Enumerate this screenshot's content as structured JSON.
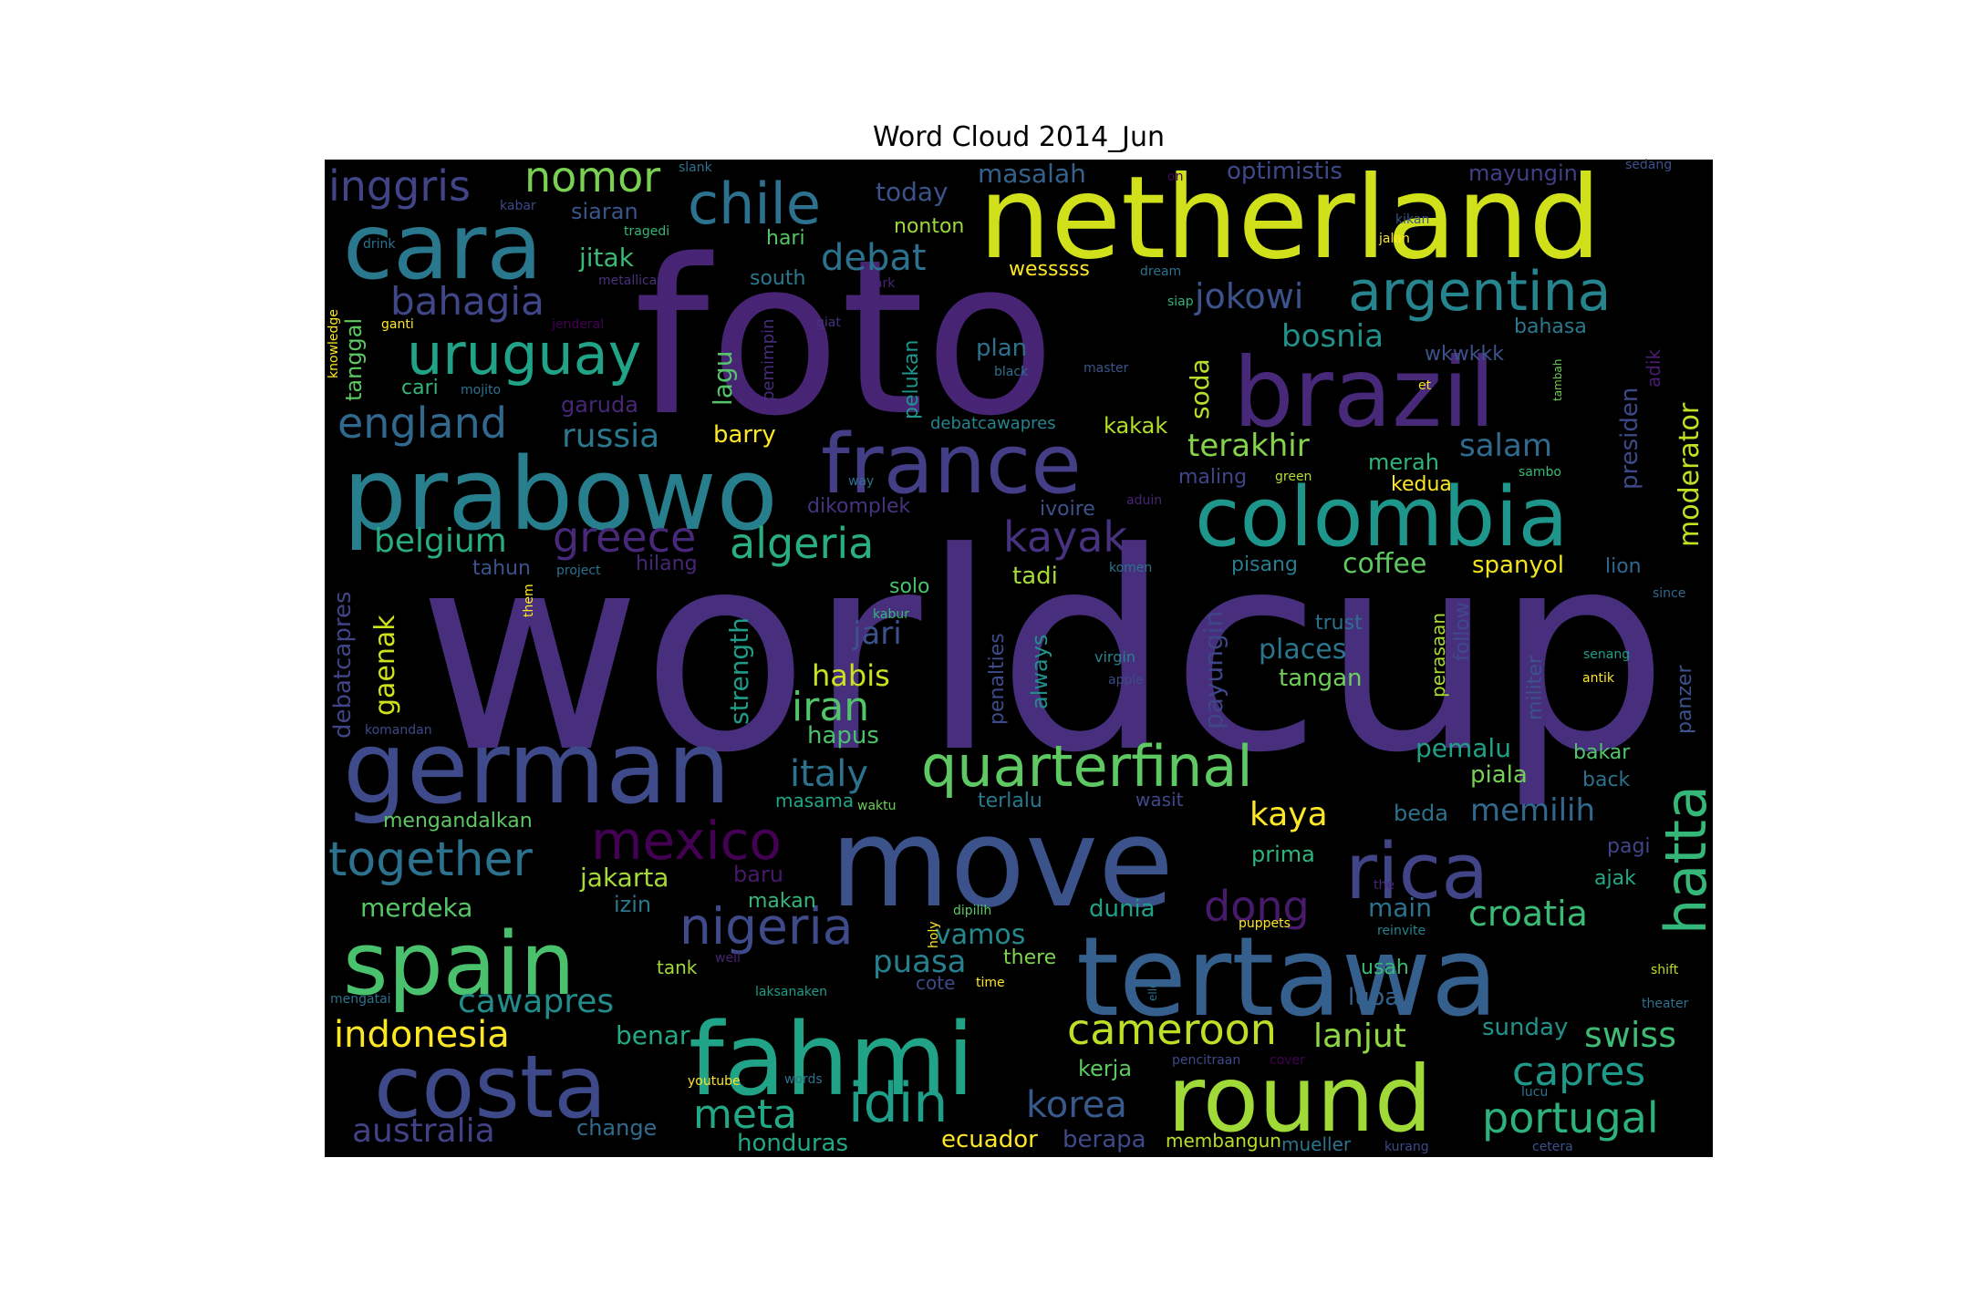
{
  "chart_data": {
    "type": "wordcloud",
    "title": "Word Cloud 2014_Jun",
    "background": "#000000",
    "colormap": "viridis",
    "words": [
      {
        "text": "worldcup",
        "size": 300,
        "color": "#472f7d"
      },
      {
        "text": "foto",
        "size": 235,
        "color": "#482475"
      },
      {
        "text": "netherland",
        "size": 125,
        "color": "#d0e11c"
      },
      {
        "text": "brazil",
        "size": 105,
        "color": "#482878"
      },
      {
        "text": "move",
        "size": 135,
        "color": "#3b528b"
      },
      {
        "text": "tertawa",
        "size": 120,
        "color": "#355f8d"
      },
      {
        "text": "prabowo",
        "size": 110,
        "color": "#277f8e"
      },
      {
        "text": "german",
        "size": 110,
        "color": "#3e4a89"
      },
      {
        "text": "fahmi",
        "size": 110,
        "color": "#20a386"
      },
      {
        "text": "cara",
        "size": 100,
        "color": "#2a788e"
      },
      {
        "text": "round",
        "size": 100,
        "color": "#a0da39"
      },
      {
        "text": "colombia",
        "size": 90,
        "color": "#1f968b"
      },
      {
        "text": "costa",
        "size": 95,
        "color": "#3e4989"
      },
      {
        "text": "spain",
        "size": 95,
        "color": "#4ac16d"
      },
      {
        "text": "france",
        "size": 90,
        "color": "#433e85"
      },
      {
        "text": "rica",
        "size": 85,
        "color": "#414487"
      },
      {
        "text": "quarterfinal",
        "size": 62,
        "color": "#5ec962"
      },
      {
        "text": "argentina",
        "size": 60,
        "color": "#25848e"
      },
      {
        "text": "uruguay",
        "size": 62,
        "color": "#20a386"
      },
      {
        "text": "chile",
        "size": 62,
        "color": "#2c728e"
      },
      {
        "text": "hatta",
        "size": 62,
        "color": "#35b779"
      },
      {
        "text": "mexico",
        "size": 58,
        "color": "#440154"
      },
      {
        "text": "nigeria",
        "size": 55,
        "color": "#3e4a89"
      },
      {
        "text": "together",
        "size": 52,
        "color": "#2c728e"
      },
      {
        "text": "idin",
        "size": 60,
        "color": "#1f9e89"
      },
      {
        "text": "nomor",
        "size": 46,
        "color": "#7ad151"
      },
      {
        "text": "inggris",
        "size": 46,
        "color": "#414487"
      },
      {
        "text": "england",
        "size": 46,
        "color": "#31688e"
      },
      {
        "text": "greece",
        "size": 46,
        "color": "#482878"
      },
      {
        "text": "kayak",
        "size": 46,
        "color": "#46327e"
      },
      {
        "text": "dong",
        "size": 46,
        "color": "#481a6c"
      },
      {
        "text": "algeria",
        "size": 46,
        "color": "#29af7f"
      },
      {
        "text": "bahagia",
        "size": 42,
        "color": "#404688"
      },
      {
        "text": "cameroon",
        "size": 46,
        "color": "#bddf26"
      },
      {
        "text": "meta",
        "size": 44,
        "color": "#22a884"
      },
      {
        "text": "capres",
        "size": 44,
        "color": "#1f9a8a"
      },
      {
        "text": "portugal",
        "size": 46,
        "color": "#2db27d"
      },
      {
        "text": "croatia",
        "size": 38,
        "color": "#3bbb75"
      },
      {
        "text": "swiss",
        "size": 38,
        "color": "#3dbc74"
      },
      {
        "text": "debat",
        "size": 40,
        "color": "#2c728e"
      },
      {
        "text": "jokowi",
        "size": 38,
        "color": "#3b528b"
      },
      {
        "text": "bosnia",
        "size": 34,
        "color": "#21918c"
      },
      {
        "text": "russia",
        "size": 36,
        "color": "#2a778e"
      },
      {
        "text": "belgium",
        "size": 36,
        "color": "#27ad81"
      },
      {
        "text": "italy",
        "size": 40,
        "color": "#2c728e"
      },
      {
        "text": "iran",
        "size": 44,
        "color": "#52c569"
      },
      {
        "text": "kaya",
        "size": 36,
        "color": "#fde725"
      },
      {
        "text": "korea",
        "size": 40,
        "color": "#38598c"
      },
      {
        "text": "lanjut",
        "size": 36,
        "color": "#8fd744"
      },
      {
        "text": "indonesia",
        "size": 40,
        "color": "#fde725"
      },
      {
        "text": "cawapres",
        "size": 36,
        "color": "#228c8d"
      },
      {
        "text": "australia",
        "size": 36,
        "color": "#424186"
      },
      {
        "text": "terakhir",
        "size": 34,
        "color": "#84d44b"
      },
      {
        "text": "salam",
        "size": 34,
        "color": "#306a8e"
      },
      {
        "text": "memilih",
        "size": 34,
        "color": "#31688e"
      },
      {
        "text": "jari",
        "size": 34,
        "color": "#3b528b"
      },
      {
        "text": "habis",
        "size": 32,
        "color": "#cae11f"
      },
      {
        "text": "puasa",
        "size": 34,
        "color": "#27808e"
      },
      {
        "text": "coffee",
        "size": 30,
        "color": "#5ec962"
      },
      {
        "text": "places",
        "size": 30,
        "color": "#2b758e"
      },
      {
        "text": "jakarta",
        "size": 28,
        "color": "#a5db36"
      },
      {
        "text": "merdeka",
        "size": 28,
        "color": "#56c667"
      },
      {
        "text": "vamos",
        "size": 30,
        "color": "#23898e"
      },
      {
        "text": "benar",
        "size": 28,
        "color": "#24aa83"
      },
      {
        "text": "main",
        "size": 28,
        "color": "#2c718e"
      },
      {
        "text": "jitak",
        "size": 28,
        "color": "#3aba76"
      },
      {
        "text": "masalah",
        "size": 28,
        "color": "#33638d"
      },
      {
        "text": "today",
        "size": 28,
        "color": "#3b528b"
      },
      {
        "text": "siaran",
        "size": 24,
        "color": "#39568c"
      },
      {
        "text": "optimistis",
        "size": 26,
        "color": "#3e4989"
      },
      {
        "text": "mayungin",
        "size": 24,
        "color": "#433e85"
      },
      {
        "text": "gaenak",
        "size": 30,
        "color": "#cde11d"
      },
      {
        "text": "debatcapres",
        "size": 26,
        "color": "#414487"
      },
      {
        "text": "tanggal",
        "size": 24,
        "color": "#5ec962"
      },
      {
        "text": "lagu",
        "size": 28,
        "color": "#54c568"
      },
      {
        "text": "pelukan",
        "size": 22,
        "color": "#1f958b"
      },
      {
        "text": "strength",
        "size": 28,
        "color": "#1e9c89"
      },
      {
        "text": "always",
        "size": 24,
        "color": "#218f8d"
      },
      {
        "text": "penalties",
        "size": 22,
        "color": "#3e4a89"
      },
      {
        "text": "payungin",
        "size": 28,
        "color": "#404588"
      },
      {
        "text": "soda",
        "size": 28,
        "color": "#b8de29"
      },
      {
        "text": "presiden",
        "size": 26,
        "color": "#3e4989"
      },
      {
        "text": "moderator",
        "size": 30,
        "color": "#c2df23"
      },
      {
        "text": "militer",
        "size": 22,
        "color": "#3b528b"
      },
      {
        "text": "follow",
        "size": 22,
        "color": "#3e4a89"
      },
      {
        "text": "perasaan",
        "size": 20,
        "color": "#a8db34"
      },
      {
        "text": "panzer",
        "size": 22,
        "color": "#3b528b"
      },
      {
        "text": "adik",
        "size": 20,
        "color": "#481d6f"
      },
      {
        "text": "barry",
        "size": 26,
        "color": "#fde725"
      },
      {
        "text": "garuda",
        "size": 24,
        "color": "#482677"
      },
      {
        "text": "kakak",
        "size": 24,
        "color": "#b5de2b"
      },
      {
        "text": "merah",
        "size": 24,
        "color": "#2fb47c"
      },
      {
        "text": "kedua",
        "size": 22,
        "color": "#fde725"
      },
      {
        "text": "maling",
        "size": 22,
        "color": "#404588"
      },
      {
        "text": "pisang",
        "size": 22,
        "color": "#287c8e"
      },
      {
        "text": "spanyol",
        "size": 26,
        "color": "#f1e51d"
      },
      {
        "text": "lion",
        "size": 22,
        "color": "#31688e"
      },
      {
        "text": "trust",
        "size": 22,
        "color": "#2d708e"
      },
      {
        "text": "tangan",
        "size": 26,
        "color": "#6ece58"
      },
      {
        "text": "pemalu",
        "size": 28,
        "color": "#1fa188"
      },
      {
        "text": "piala",
        "size": 26,
        "color": "#75d054"
      },
      {
        "text": "bakar",
        "size": 22,
        "color": "#52c569"
      },
      {
        "text": "back",
        "size": 22,
        "color": "#2d708e"
      },
      {
        "text": "terlalu",
        "size": 22,
        "color": "#2a788e"
      },
      {
        "text": "wasit",
        "size": 20,
        "color": "#3e4989"
      },
      {
        "text": "beda",
        "size": 24,
        "color": "#2c728e"
      },
      {
        "text": "prima",
        "size": 24,
        "color": "#2fb47c"
      },
      {
        "text": "pagi",
        "size": 22,
        "color": "#414487"
      },
      {
        "text": "ajak",
        "size": 22,
        "color": "#22a884"
      },
      {
        "text": "dunia",
        "size": 26,
        "color": "#1fa187"
      },
      {
        "text": "there",
        "size": 22,
        "color": "#7fd34e"
      },
      {
        "text": "usah",
        "size": 22,
        "color": "#3aba76"
      },
      {
        "text": "lupa",
        "size": 26,
        "color": "#33638d"
      },
      {
        "text": "cote",
        "size": 20,
        "color": "#3e4989"
      },
      {
        "text": "tank",
        "size": 20,
        "color": "#a0da39"
      },
      {
        "text": "sunday",
        "size": 26,
        "color": "#21918c"
      },
      {
        "text": "kerja",
        "size": 24,
        "color": "#5ec962"
      },
      {
        "text": "change",
        "size": 24,
        "color": "#306a8e"
      },
      {
        "text": "honduras",
        "size": 26,
        "color": "#22a884"
      },
      {
        "text": "ecuador",
        "size": 26,
        "color": "#fde725"
      },
      {
        "text": "berapa",
        "size": 26,
        "color": "#3e4a89"
      },
      {
        "text": "membangun",
        "size": 20,
        "color": "#b8de29"
      },
      {
        "text": "mueller",
        "size": 20,
        "color": "#2c728e"
      },
      {
        "text": "hari",
        "size": 22,
        "color": "#54c568"
      },
      {
        "text": "nonton",
        "size": 22,
        "color": "#9bd93c"
      },
      {
        "text": "wesssss",
        "size": 22,
        "color": "#fde725"
      },
      {
        "text": "south",
        "size": 22,
        "color": "#2a788e"
      },
      {
        "text": "plan",
        "size": 26,
        "color": "#2c728e"
      },
      {
        "text": "wkwkkk",
        "size": 22,
        "color": "#3b528b"
      },
      {
        "text": "bahasa",
        "size": 22,
        "color": "#2a788e"
      },
      {
        "text": "cari",
        "size": 22,
        "color": "#35b779"
      },
      {
        "text": "tahun",
        "size": 22,
        "color": "#3b528b"
      },
      {
        "text": "hilang",
        "size": 22,
        "color": "#482677"
      },
      {
        "text": "solo",
        "size": 22,
        "color": "#4ac16d"
      },
      {
        "text": "tadi",
        "size": 26,
        "color": "#a5db36"
      },
      {
        "text": "ivoire",
        "size": 22,
        "color": "#3b528b"
      },
      {
        "text": "dikomplek",
        "size": 22,
        "color": "#46337f"
      },
      {
        "text": "debatcawapres",
        "size": 18,
        "color": "#25848e"
      },
      {
        "text": "hapus",
        "size": 26,
        "color": "#4ac16d"
      },
      {
        "text": "masama",
        "size": 20,
        "color": "#21a585"
      },
      {
        "text": "mengandalkan",
        "size": 22,
        "color": "#5ec962"
      },
      {
        "text": "baru",
        "size": 24,
        "color": "#48186a"
      },
      {
        "text": "izin",
        "size": 24,
        "color": "#2a788e"
      },
      {
        "text": "makan",
        "size": 22,
        "color": "#35b779"
      },
      {
        "text": "pemimpin",
        "size": 18,
        "color": "#472d7b"
      },
      {
        "text": "virgin",
        "size": 16,
        "color": "#26828e"
      },
      {
        "text": "apple",
        "size": 14,
        "color": "#3e4989"
      },
      {
        "text": "black",
        "size": 14,
        "color": "#2d708e"
      },
      {
        "text": "master",
        "size": 14,
        "color": "#39568c"
      },
      {
        "text": "dream",
        "size": 14,
        "color": "#2d708e"
      },
      {
        "text": "siap",
        "size": 14,
        "color": "#2db27d"
      },
      {
        "text": "dark",
        "size": 14,
        "color": "#482475"
      },
      {
        "text": "giat",
        "size": 14,
        "color": "#46337f"
      },
      {
        "text": "way",
        "size": 14,
        "color": "#2d708e"
      },
      {
        "text": "aduin",
        "size": 14,
        "color": "#482475"
      },
      {
        "text": "green",
        "size": 14,
        "color": "#b5de2b"
      },
      {
        "text": "komen",
        "size": 14,
        "color": "#2c728e"
      },
      {
        "text": "kabur",
        "size": 14,
        "color": "#35b779"
      },
      {
        "text": "sambo",
        "size": 14,
        "color": "#3aba76"
      },
      {
        "text": "since",
        "size": 14,
        "color": "#31688e"
      },
      {
        "text": "senang",
        "size": 14,
        "color": "#1f9e89"
      },
      {
        "text": "antik",
        "size": 14,
        "color": "#fde725"
      },
      {
        "text": "tambah",
        "size": 12,
        "color": "#6ece58"
      },
      {
        "text": "et",
        "size": 14,
        "color": "#fde725"
      },
      {
        "text": "kikan",
        "size": 14,
        "color": "#3b528b"
      },
      {
        "text": "jalan",
        "size": 14,
        "color": "#fde725"
      },
      {
        "text": "sedang",
        "size": 14,
        "color": "#3b528b"
      },
      {
        "text": "on",
        "size": 14,
        "color": "#450457"
      },
      {
        "text": "slank",
        "size": 14,
        "color": "#2c728e"
      },
      {
        "text": "kabar",
        "size": 14,
        "color": "#3e4989"
      },
      {
        "text": "tragedi",
        "size": 14,
        "color": "#35b779"
      },
      {
        "text": "drink",
        "size": 14,
        "color": "#2c728e"
      },
      {
        "text": "metallica",
        "size": 14,
        "color": "#46327e"
      },
      {
        "text": "ganti",
        "size": 14,
        "color": "#fde725"
      },
      {
        "text": "jenderal",
        "size": 14,
        "color": "#440154"
      },
      {
        "text": "knowledge",
        "size": 14,
        "color": "#fde725"
      },
      {
        "text": "mojito",
        "size": 14,
        "color": "#2c728e"
      },
      {
        "text": "project",
        "size": 14,
        "color": "#2c728e"
      },
      {
        "text": "them",
        "size": 14,
        "color": "#fde725"
      },
      {
        "text": "komandan",
        "size": 14,
        "color": "#3e4989"
      },
      {
        "text": "waktu",
        "size": 14,
        "color": "#6ece58"
      },
      {
        "text": "holy",
        "size": 14,
        "color": "#fde725"
      },
      {
        "text": "dipilih",
        "size": 14,
        "color": "#5ec962"
      },
      {
        "text": "puppets",
        "size": 14,
        "color": "#fde725"
      },
      {
        "text": "the",
        "size": 14,
        "color": "#482878"
      },
      {
        "text": "reinvite",
        "size": 14,
        "color": "#26828e"
      },
      {
        "text": "shift",
        "size": 14,
        "color": "#bddf26"
      },
      {
        "text": "theater",
        "size": 14,
        "color": "#2c728e"
      },
      {
        "text": "well",
        "size": 14,
        "color": "#482475"
      },
      {
        "text": "time",
        "size": 14,
        "color": "#fde725"
      },
      {
        "text": "ello",
        "size": 12,
        "color": "#2d708e"
      },
      {
        "text": "laksanaken",
        "size": 14,
        "color": "#1f9e89"
      },
      {
        "text": "mengatai",
        "size": 14,
        "color": "#2c728e"
      },
      {
        "text": "youtube",
        "size": 14,
        "color": "#fde725"
      },
      {
        "text": "words",
        "size": 14,
        "color": "#2c728e"
      },
      {
        "text": "pencitraan",
        "size": 14,
        "color": "#3e4989"
      },
      {
        "text": "cover",
        "size": 14,
        "color": "#440154"
      },
      {
        "text": "lucu",
        "size": 14,
        "color": "#2c728e"
      },
      {
        "text": "kurang",
        "size": 14,
        "color": "#3e4989"
      },
      {
        "text": "cetera",
        "size": 14,
        "color": "#3b528b"
      }
    ]
  }
}
